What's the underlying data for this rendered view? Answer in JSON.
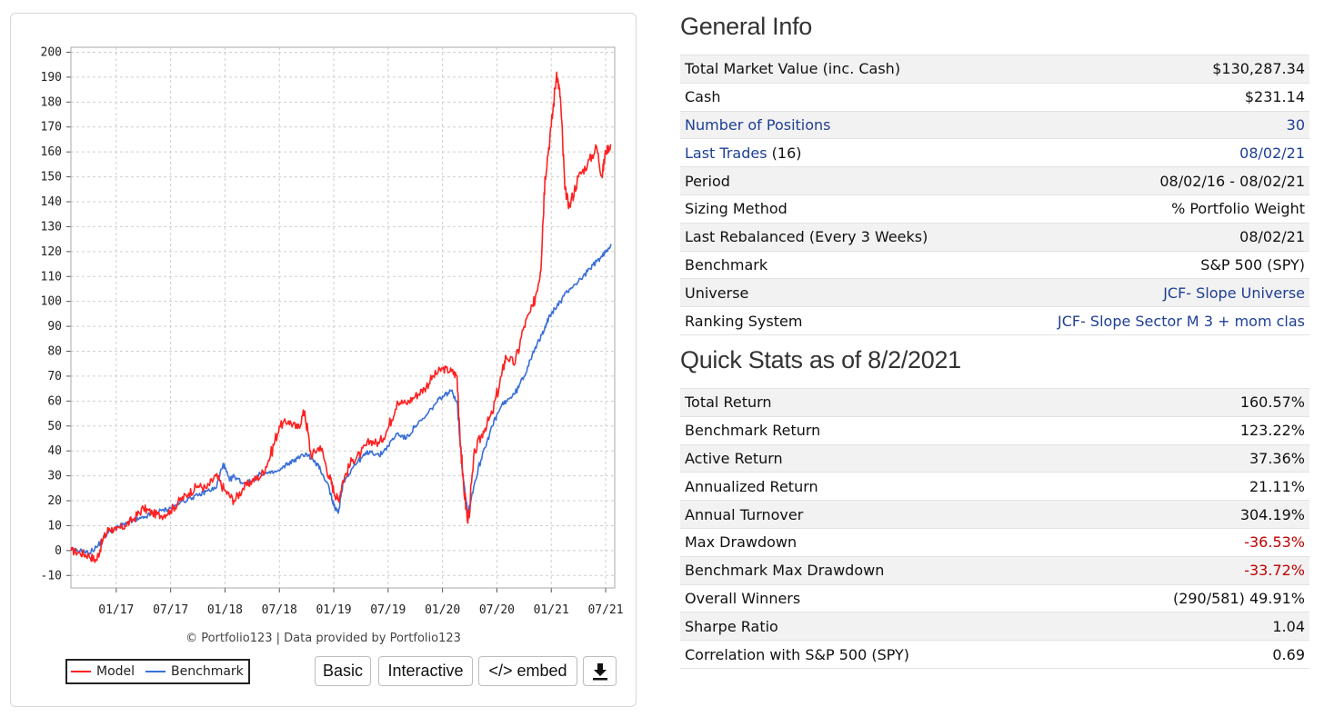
{
  "chart": {
    "credit": "© Portfolio123 | Data provided by Portfolio123",
    "buttons": {
      "basic": "Basic",
      "interactive": "Interactive",
      "embed": "</> embed",
      "download_icon": "download-icon"
    },
    "colors": {
      "model": "#ff2020",
      "benchmark": "#3a6fd8"
    }
  },
  "chart_data": {
    "type": "line",
    "x_tick_labels": [
      "01/17",
      "07/17",
      "01/18",
      "07/18",
      "01/19",
      "07/19",
      "01/20",
      "07/20",
      "01/21",
      "07/21"
    ],
    "x_tick_months": [
      5,
      11,
      17,
      23,
      29,
      35,
      41,
      47,
      53,
      59
    ],
    "x_unit": "months since 08/2016",
    "xlim": [
      0,
      60
    ],
    "ylim": [
      -15,
      202
    ],
    "yticks": [
      -10,
      0,
      10,
      20,
      30,
      40,
      50,
      60,
      70,
      80,
      90,
      100,
      110,
      120,
      130,
      140,
      150,
      160,
      170,
      180,
      190,
      200
    ],
    "grid": true,
    "legend_position": "bottom-left",
    "series": [
      {
        "name": "Model",
        "color": "#ff2020",
        "points": [
          [
            0,
            0
          ],
          [
            1,
            -1
          ],
          [
            2,
            -2
          ],
          [
            2.8,
            -4
          ],
          [
            3.5,
            4
          ],
          [
            4.2,
            9
          ],
          [
            5,
            8
          ],
          [
            6,
            10
          ],
          [
            7,
            13
          ],
          [
            8,
            17
          ],
          [
            9,
            15
          ],
          [
            10,
            14
          ],
          [
            11,
            16
          ],
          [
            12,
            20
          ],
          [
            13,
            23
          ],
          [
            14,
            26
          ],
          [
            15,
            25
          ],
          [
            16,
            30
          ],
          [
            17,
            24
          ],
          [
            18,
            20
          ],
          [
            19,
            25
          ],
          [
            20,
            28
          ],
          [
            21,
            30
          ],
          [
            22,
            38
          ],
          [
            23,
            50
          ],
          [
            24,
            52
          ],
          [
            25,
            49
          ],
          [
            25.8,
            56
          ],
          [
            26.5,
            38
          ],
          [
            27.5,
            42
          ],
          [
            28.5,
            30
          ],
          [
            29,
            24
          ],
          [
            29.5,
            20
          ],
          [
            30,
            28
          ],
          [
            31,
            36
          ],
          [
            32,
            39
          ],
          [
            33,
            44
          ],
          [
            34,
            43
          ],
          [
            35,
            49
          ],
          [
            36,
            60
          ],
          [
            37,
            59
          ],
          [
            38,
            62
          ],
          [
            39,
            65
          ],
          [
            40,
            70
          ],
          [
            41,
            73
          ],
          [
            42,
            72
          ],
          [
            42.6,
            70
          ],
          [
            43.2,
            30
          ],
          [
            43.8,
            11
          ],
          [
            44.6,
            40
          ],
          [
            45.5,
            48
          ],
          [
            46.5,
            55
          ],
          [
            47.5,
            70
          ],
          [
            48,
            78
          ],
          [
            49,
            75
          ],
          [
            50,
            90
          ],
          [
            51,
            98
          ],
          [
            51.8,
            112
          ],
          [
            52.3,
            150
          ],
          [
            53,
            170
          ],
          [
            53.6,
            192
          ],
          [
            54,
            182
          ],
          [
            54.5,
            145
          ],
          [
            55,
            138
          ],
          [
            56,
            150
          ],
          [
            57,
            155
          ],
          [
            58,
            162
          ],
          [
            58.6,
            150
          ],
          [
            59,
            160
          ],
          [
            59.6,
            163
          ]
        ]
      },
      {
        "name": "Benchmark",
        "color": "#3a6fd8",
        "points": [
          [
            0,
            0
          ],
          [
            1,
            0
          ],
          [
            2,
            -1
          ],
          [
            3,
            2
          ],
          [
            4,
            7
          ],
          [
            5,
            9
          ],
          [
            6,
            11
          ],
          [
            7,
            12
          ],
          [
            8,
            13
          ],
          [
            9,
            15
          ],
          [
            10,
            16
          ],
          [
            11,
            17
          ],
          [
            12,
            19
          ],
          [
            13,
            21
          ],
          [
            14,
            22
          ],
          [
            15,
            24
          ],
          [
            16,
            25
          ],
          [
            16.8,
            35
          ],
          [
            17.5,
            28
          ],
          [
            18,
            30
          ],
          [
            19,
            27
          ],
          [
            20,
            28
          ],
          [
            21,
            31
          ],
          [
            22,
            31
          ],
          [
            23,
            32
          ],
          [
            24,
            35
          ],
          [
            25,
            37
          ],
          [
            26,
            39
          ],
          [
            27,
            35
          ],
          [
            27.5,
            33
          ],
          [
            28.5,
            25
          ],
          [
            29,
            18
          ],
          [
            29.5,
            15
          ],
          [
            30,
            27
          ],
          [
            31,
            33
          ],
          [
            32,
            37
          ],
          [
            33,
            40
          ],
          [
            34,
            38
          ],
          [
            35,
            42
          ],
          [
            36,
            47
          ],
          [
            37,
            45
          ],
          [
            38,
            50
          ],
          [
            39,
            53
          ],
          [
            40,
            58
          ],
          [
            41,
            62
          ],
          [
            42,
            64
          ],
          [
            42.6,
            60
          ],
          [
            43.2,
            32
          ],
          [
            43.8,
            15
          ],
          [
            44.6,
            28
          ],
          [
            45.5,
            40
          ],
          [
            46.5,
            50
          ],
          [
            47.5,
            58
          ],
          [
            48,
            60
          ],
          [
            49,
            63
          ],
          [
            50,
            70
          ],
          [
            51,
            80
          ],
          [
            51.8,
            85
          ],
          [
            52.3,
            90
          ],
          [
            53,
            95
          ],
          [
            54,
            100
          ],
          [
            55,
            105
          ],
          [
            56,
            108
          ],
          [
            57,
            112
          ],
          [
            58,
            116
          ],
          [
            58.6,
            118
          ],
          [
            59,
            120
          ],
          [
            59.6,
            123
          ]
        ]
      }
    ]
  },
  "general_info": {
    "title": "General Info",
    "rows": [
      {
        "label": "Total Market Value (inc. Cash)",
        "value": "$130,287.34"
      },
      {
        "label": "Cash",
        "value": "$231.14"
      },
      {
        "label": "Number of Positions",
        "value": "30"
      },
      {
        "label": "Last Trades",
        "label_suffix": " (16)",
        "value": "08/02/21"
      },
      {
        "label": "Period",
        "value": "08/02/16 - 08/02/21"
      },
      {
        "label": "Sizing Method",
        "value": "% Portfolio Weight"
      },
      {
        "label": "Last Rebalanced (Every 3 Weeks)",
        "value": "08/02/21"
      },
      {
        "label": "Benchmark",
        "value": "S&P 500 (SPY)"
      },
      {
        "label": "Universe",
        "value": "JCF- Slope Universe"
      },
      {
        "label": "Ranking System",
        "value": "JCF- Slope Sector M 3 + mom clas"
      }
    ]
  },
  "quick_stats": {
    "title": "Quick Stats as of 8/2/2021",
    "rows": [
      {
        "label": "Total Return",
        "value": "160.57%"
      },
      {
        "label": "Benchmark Return",
        "value": "123.22%"
      },
      {
        "label": "Active Return",
        "value": "37.36%"
      },
      {
        "label": "Annualized Return",
        "value": "21.11%"
      },
      {
        "label": "Annual Turnover",
        "value": "304.19%"
      },
      {
        "label": "Max Drawdown",
        "value": "-36.53%"
      },
      {
        "label": "Benchmark Max Drawdown",
        "value": "-33.72%"
      },
      {
        "label": "Overall Winners",
        "value": "(290/581) 49.91%"
      },
      {
        "label": "Sharpe Ratio",
        "value": "1.04"
      },
      {
        "label": "Correlation with S&P 500 (SPY)",
        "value": "0.69"
      }
    ]
  }
}
